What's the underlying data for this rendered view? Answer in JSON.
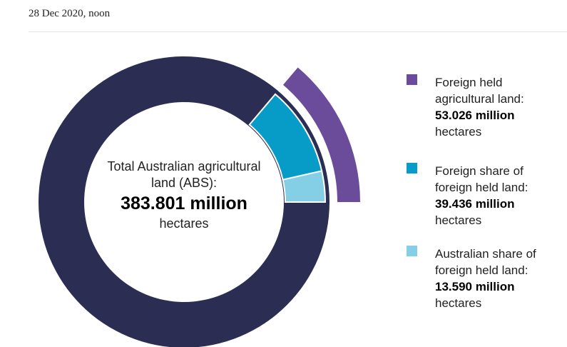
{
  "dateline": "28 Dec 2020, noon",
  "chart_data": {
    "type": "donut",
    "total": {
      "label": "Total Australian agricultural land (ABS):",
      "value": 383.801,
      "value_label": "383.801 million",
      "color": "#2b2d52"
    },
    "unit": "hectares",
    "series": [
      {
        "name": "Foreign held agricultural land:",
        "value": 53.026,
        "value_label": "53.026 million",
        "color": "#6b4c9a",
        "ring": "outer"
      },
      {
        "name": "Foreign share of foreign held land:",
        "value": 39.436,
        "value_label": "39.436 million",
        "color": "#079bc7",
        "ring": "inner"
      },
      {
        "name": "Australian share of foreign held land:",
        "value": 13.59,
        "value_label": "13.590 million",
        "color": "#84cfe6",
        "ring": "inner"
      }
    ]
  }
}
